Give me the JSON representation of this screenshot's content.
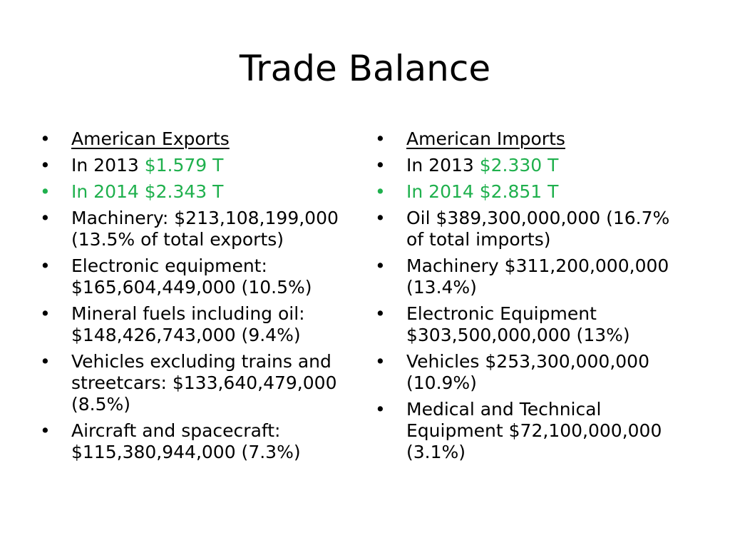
{
  "slide": {
    "title": "Trade Balance",
    "bullet_symbol": "•",
    "accent_color": "#1fb04d",
    "left": {
      "heading": "American Exports",
      "year2013_prefix": "In 2013 ",
      "year2013_value": "$1.579 T",
      "year2014": "In 2014 $2.343 T",
      "items": [
        "Machinery: $213,108,199,000 (13.5% of total exports)",
        "Electronic equipment: $165,604,449,000 (10.5%)",
        "Mineral fuels including oil: $148,426,743,000 (9.4%)",
        "Vehicles excluding trains and streetcars: $133,640,479,000 (8.5%)",
        "Aircraft and spacecraft: $115,380,944,000 (7.3%)"
      ]
    },
    "right": {
      "heading": "American Imports",
      "year2013_prefix": "In 2013 ",
      "year2013_value": "$2.330 T",
      "year2014": "In 2014 $2.851 T",
      "items": [
        "Oil $389,300,000,000 (16.7% of total imports)",
        "Machinery $311,200,000,000 (13.4%)",
        "Electronic Equipment $303,500,000,000 (13%)",
        "Vehicles $253,300,000,000 (10.9%)",
        "Medical and Technical Equipment $72,100,000,000 (3.1%)"
      ]
    }
  }
}
